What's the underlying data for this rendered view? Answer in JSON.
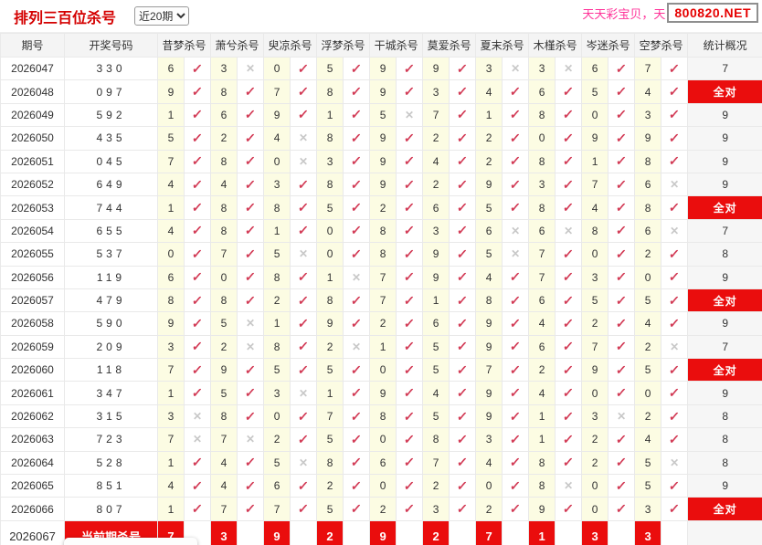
{
  "page": {
    "title": "排列三百位杀号",
    "range_value": "近20期",
    "promo_text": "天天彩宝贝，天",
    "site_badge": "800820.NET"
  },
  "icons": {
    "check": "✓",
    "cross": "✕",
    "dropdown": "▾"
  },
  "colors": {
    "title_red": "#d40000",
    "accent_red": "#ea0d0d",
    "badge_red": "#e60000",
    "promo_pink": "#ff3399",
    "check_red": "#d23a55",
    "cross_gray": "#c8c8c8",
    "cell_yellow": "#fcfce3"
  },
  "table": {
    "headers": [
      "期号",
      "开奖号码",
      "昔梦杀号",
      "萧兮杀号",
      "臾凉杀号",
      "浮梦杀号",
      "干城杀号",
      "莫爱杀号",
      "夏末杀号",
      "木槿杀号",
      "岑迷杀号",
      "空梦杀号",
      "统计概况"
    ],
    "all_correct_label": "全对",
    "rows": [
      {
        "period": "2026047",
        "draw": "330",
        "kills": [
          [
            6,
            1
          ],
          [
            3,
            0
          ],
          [
            0,
            1
          ],
          [
            5,
            1
          ],
          [
            9,
            1
          ],
          [
            9,
            1
          ],
          [
            3,
            0
          ],
          [
            3,
            0
          ],
          [
            6,
            1
          ],
          [
            7,
            1
          ]
        ],
        "stat": "7"
      },
      {
        "period": "2026048",
        "draw": "097",
        "kills": [
          [
            9,
            1
          ],
          [
            8,
            1
          ],
          [
            7,
            1
          ],
          [
            8,
            1
          ],
          [
            9,
            1
          ],
          [
            3,
            1
          ],
          [
            4,
            1
          ],
          [
            6,
            1
          ],
          [
            5,
            1
          ],
          [
            4,
            1
          ]
        ],
        "stat": "全对"
      },
      {
        "period": "2026049",
        "draw": "592",
        "kills": [
          [
            1,
            1
          ],
          [
            6,
            1
          ],
          [
            9,
            1
          ],
          [
            1,
            1
          ],
          [
            5,
            0
          ],
          [
            7,
            1
          ],
          [
            1,
            1
          ],
          [
            8,
            1
          ],
          [
            0,
            1
          ],
          [
            3,
            1
          ]
        ],
        "stat": "9"
      },
      {
        "period": "2026050",
        "draw": "435",
        "kills": [
          [
            5,
            1
          ],
          [
            2,
            1
          ],
          [
            4,
            0
          ],
          [
            8,
            1
          ],
          [
            9,
            1
          ],
          [
            2,
            1
          ],
          [
            2,
            1
          ],
          [
            0,
            1
          ],
          [
            9,
            1
          ],
          [
            9,
            1
          ]
        ],
        "stat": "9"
      },
      {
        "period": "2026051",
        "draw": "045",
        "kills": [
          [
            7,
            1
          ],
          [
            8,
            1
          ],
          [
            0,
            0
          ],
          [
            3,
            1
          ],
          [
            9,
            1
          ],
          [
            4,
            1
          ],
          [
            2,
            1
          ],
          [
            8,
            1
          ],
          [
            1,
            1
          ],
          [
            8,
            1
          ]
        ],
        "stat": "9"
      },
      {
        "period": "2026052",
        "draw": "649",
        "kills": [
          [
            4,
            1
          ],
          [
            4,
            1
          ],
          [
            3,
            1
          ],
          [
            8,
            1
          ],
          [
            9,
            1
          ],
          [
            2,
            1
          ],
          [
            9,
            1
          ],
          [
            3,
            1
          ],
          [
            7,
            1
          ],
          [
            6,
            0
          ]
        ],
        "stat": "9"
      },
      {
        "period": "2026053",
        "draw": "744",
        "kills": [
          [
            1,
            1
          ],
          [
            8,
            1
          ],
          [
            8,
            1
          ],
          [
            5,
            1
          ],
          [
            2,
            1
          ],
          [
            6,
            1
          ],
          [
            5,
            1
          ],
          [
            8,
            1
          ],
          [
            4,
            1
          ],
          [
            8,
            1
          ]
        ],
        "stat": "全对"
      },
      {
        "period": "2026054",
        "draw": "655",
        "kills": [
          [
            4,
            1
          ],
          [
            8,
            1
          ],
          [
            1,
            1
          ],
          [
            0,
            1
          ],
          [
            8,
            1
          ],
          [
            3,
            1
          ],
          [
            6,
            0
          ],
          [
            6,
            0
          ],
          [
            8,
            1
          ],
          [
            6,
            0
          ]
        ],
        "stat": "7"
      },
      {
        "period": "2026055",
        "draw": "537",
        "kills": [
          [
            0,
            1
          ],
          [
            7,
            1
          ],
          [
            5,
            0
          ],
          [
            0,
            1
          ],
          [
            8,
            1
          ],
          [
            9,
            1
          ],
          [
            5,
            0
          ],
          [
            7,
            1
          ],
          [
            0,
            1
          ],
          [
            2,
            1
          ]
        ],
        "stat": "8"
      },
      {
        "period": "2026056",
        "draw": "119",
        "kills": [
          [
            6,
            1
          ],
          [
            0,
            1
          ],
          [
            8,
            1
          ],
          [
            1,
            0
          ],
          [
            7,
            1
          ],
          [
            9,
            1
          ],
          [
            4,
            1
          ],
          [
            7,
            1
          ],
          [
            3,
            1
          ],
          [
            0,
            1
          ]
        ],
        "stat": "9"
      },
      {
        "period": "2026057",
        "draw": "479",
        "kills": [
          [
            8,
            1
          ],
          [
            8,
            1
          ],
          [
            2,
            1
          ],
          [
            8,
            1
          ],
          [
            7,
            1
          ],
          [
            1,
            1
          ],
          [
            8,
            1
          ],
          [
            6,
            1
          ],
          [
            5,
            1
          ],
          [
            5,
            1
          ]
        ],
        "stat": "全对"
      },
      {
        "period": "2026058",
        "draw": "590",
        "kills": [
          [
            9,
            1
          ],
          [
            5,
            0
          ],
          [
            1,
            1
          ],
          [
            9,
            1
          ],
          [
            2,
            1
          ],
          [
            6,
            1
          ],
          [
            9,
            1
          ],
          [
            4,
            1
          ],
          [
            2,
            1
          ],
          [
            4,
            1
          ]
        ],
        "stat": "9"
      },
      {
        "period": "2026059",
        "draw": "209",
        "kills": [
          [
            3,
            1
          ],
          [
            2,
            0
          ],
          [
            8,
            1
          ],
          [
            2,
            0
          ],
          [
            1,
            1
          ],
          [
            5,
            1
          ],
          [
            9,
            1
          ],
          [
            6,
            1
          ],
          [
            7,
            1
          ],
          [
            2,
            0
          ]
        ],
        "stat": "7"
      },
      {
        "period": "2026060",
        "draw": "118",
        "kills": [
          [
            7,
            1
          ],
          [
            9,
            1
          ],
          [
            5,
            1
          ],
          [
            5,
            1
          ],
          [
            0,
            1
          ],
          [
            5,
            1
          ],
          [
            7,
            1
          ],
          [
            2,
            1
          ],
          [
            9,
            1
          ],
          [
            5,
            1
          ]
        ],
        "stat": "全对"
      },
      {
        "period": "2026061",
        "draw": "347",
        "kills": [
          [
            1,
            1
          ],
          [
            5,
            1
          ],
          [
            3,
            0
          ],
          [
            1,
            1
          ],
          [
            9,
            1
          ],
          [
            4,
            1
          ],
          [
            9,
            1
          ],
          [
            4,
            1
          ],
          [
            0,
            1
          ],
          [
            0,
            1
          ]
        ],
        "stat": "9"
      },
      {
        "period": "2026062",
        "draw": "315",
        "kills": [
          [
            3,
            0
          ],
          [
            8,
            1
          ],
          [
            0,
            1
          ],
          [
            7,
            1
          ],
          [
            8,
            1
          ],
          [
            5,
            1
          ],
          [
            9,
            1
          ],
          [
            1,
            1
          ],
          [
            3,
            0
          ],
          [
            2,
            1
          ]
        ],
        "stat": "8"
      },
      {
        "period": "2026063",
        "draw": "723",
        "kills": [
          [
            7,
            0
          ],
          [
            7,
            0
          ],
          [
            2,
            1
          ],
          [
            5,
            1
          ],
          [
            0,
            1
          ],
          [
            8,
            1
          ],
          [
            3,
            1
          ],
          [
            1,
            1
          ],
          [
            2,
            1
          ],
          [
            4,
            1
          ]
        ],
        "stat": "8"
      },
      {
        "period": "2026064",
        "draw": "528",
        "kills": [
          [
            1,
            1
          ],
          [
            4,
            1
          ],
          [
            5,
            0
          ],
          [
            8,
            1
          ],
          [
            6,
            1
          ],
          [
            7,
            1
          ],
          [
            4,
            1
          ],
          [
            8,
            1
          ],
          [
            2,
            1
          ],
          [
            5,
            0
          ]
        ],
        "stat": "8"
      },
      {
        "period": "2026065",
        "draw": "851",
        "kills": [
          [
            4,
            1
          ],
          [
            4,
            1
          ],
          [
            6,
            1
          ],
          [
            2,
            1
          ],
          [
            0,
            1
          ],
          [
            2,
            1
          ],
          [
            0,
            1
          ],
          [
            8,
            0
          ],
          [
            0,
            1
          ],
          [
            5,
            1
          ]
        ],
        "stat": "9"
      },
      {
        "period": "2026066",
        "draw": "807",
        "kills": [
          [
            1,
            1
          ],
          [
            7,
            1
          ],
          [
            7,
            1
          ],
          [
            5,
            1
          ],
          [
            2,
            1
          ],
          [
            3,
            1
          ],
          [
            2,
            1
          ],
          [
            9,
            1
          ],
          [
            0,
            1
          ],
          [
            3,
            1
          ]
        ],
        "stat": "全对"
      }
    ],
    "current": {
      "period": "2026067",
      "label": "当前期杀号",
      "kills": [
        "7",
        "3",
        "9",
        "2",
        "9",
        "2",
        "7",
        "1",
        "3",
        "3"
      ],
      "stat": ""
    }
  }
}
